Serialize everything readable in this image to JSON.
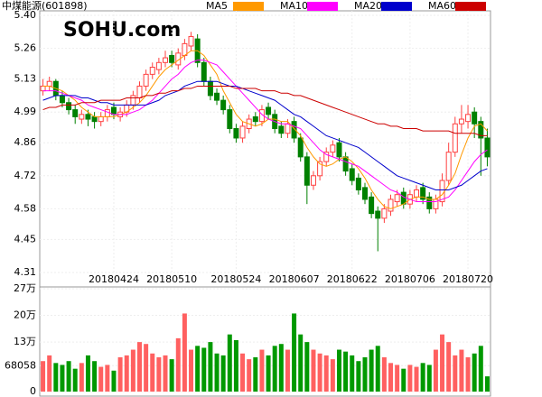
{
  "chart_data": [
    {
      "type": "candlestick",
      "title": "中煤能源(601898)",
      "watermark": "SOHU.com",
      "categories": [
        null,
        null,
        null,
        null,
        null,
        null,
        null,
        null,
        null,
        null,
        null,
        "20180424",
        null,
        null,
        null,
        null,
        null,
        null,
        null,
        null,
        "20180510",
        null,
        null,
        null,
        null,
        null,
        null,
        null,
        null,
        null,
        "20180524",
        null,
        null,
        null,
        null,
        null,
        null,
        null,
        null,
        "20180607",
        null,
        null,
        null,
        null,
        null,
        null,
        null,
        null,
        "20180622",
        null,
        null,
        null,
        null,
        null,
        null,
        null,
        null,
        "20180706",
        null,
        null,
        null,
        null,
        null,
        null,
        null,
        null,
        "20180720",
        null,
        null,
        null
      ],
      "open": [
        5.08,
        5.1,
        5.12,
        5.06,
        5.03,
        5.0,
        4.96,
        4.98,
        4.97,
        4.95,
        4.97,
        5.01,
        4.97,
        4.99,
        5.02,
        5.05,
        5.1,
        5.15,
        5.17,
        5.2,
        5.23,
        5.19,
        5.23,
        5.27,
        5.3,
        5.2,
        5.12,
        5.07,
        5.04,
        5.0,
        4.92,
        4.88,
        4.92,
        4.97,
        4.95,
        5.01,
        4.98,
        4.93,
        4.9,
        4.95,
        4.88,
        4.8,
        4.68,
        4.72,
        4.78,
        4.82,
        4.86,
        4.8,
        4.75,
        4.71,
        4.67,
        4.63,
        4.57,
        4.54,
        4.57,
        4.61,
        4.65,
        4.6,
        4.63,
        4.67,
        4.63,
        4.58,
        4.61,
        4.7,
        4.82,
        4.94,
        4.95,
        4.99,
        4.95,
        4.88
      ],
      "high": [
        5.13,
        5.14,
        5.13,
        5.08,
        5.05,
        5.02,
        5.0,
        5.0,
        4.99,
        4.99,
        5.02,
        5.03,
        5.01,
        5.04,
        5.08,
        5.12,
        5.17,
        5.2,
        5.22,
        5.25,
        5.25,
        5.26,
        5.3,
        5.33,
        5.32,
        5.22,
        5.14,
        5.09,
        5.06,
        5.02,
        4.94,
        4.95,
        4.98,
        4.99,
        5.02,
        5.03,
        5.0,
        4.95,
        4.96,
        4.97,
        4.9,
        4.82,
        4.74,
        4.8,
        4.84,
        4.87,
        4.88,
        4.82,
        4.77,
        4.73,
        4.69,
        4.65,
        4.59,
        4.6,
        4.64,
        4.66,
        4.67,
        4.66,
        4.68,
        4.69,
        4.65,
        4.64,
        4.73,
        4.86,
        4.97,
        5.02,
        5.02,
        5.01,
        4.97,
        4.92
      ],
      "low": [
        5.06,
        5.08,
        5.04,
        5.01,
        4.98,
        4.94,
        4.94,
        4.93,
        4.92,
        4.93,
        4.95,
        4.96,
        4.95,
        4.97,
        5.0,
        5.03,
        5.08,
        5.13,
        5.15,
        5.18,
        5.18,
        5.17,
        5.21,
        5.25,
        5.18,
        5.1,
        5.04,
        5.02,
        4.98,
        4.9,
        4.86,
        4.86,
        4.9,
        4.93,
        4.93,
        4.96,
        4.9,
        4.88,
        4.88,
        4.86,
        4.78,
        4.6,
        4.66,
        4.7,
        4.76,
        4.8,
        4.78,
        4.72,
        4.68,
        4.64,
        4.6,
        4.54,
        4.4,
        4.52,
        4.55,
        4.59,
        4.58,
        4.58,
        4.61,
        4.6,
        4.56,
        4.56,
        4.59,
        4.68,
        4.8,
        4.9,
        4.92,
        4.88,
        4.72,
        4.76
      ],
      "close": [
        5.1,
        5.12,
        5.06,
        5.03,
        5.0,
        4.97,
        4.98,
        4.96,
        4.95,
        4.97,
        5.0,
        4.98,
        4.99,
        5.02,
        5.06,
        5.1,
        5.15,
        5.18,
        5.2,
        5.22,
        5.2,
        5.24,
        5.28,
        5.31,
        5.2,
        5.12,
        5.06,
        5.04,
        5.0,
        4.92,
        4.88,
        4.93,
        4.96,
        4.95,
        5.0,
        4.98,
        4.92,
        4.9,
        4.94,
        4.88,
        4.8,
        4.68,
        4.72,
        4.78,
        4.82,
        4.85,
        4.8,
        4.74,
        4.7,
        4.66,
        4.62,
        4.56,
        4.54,
        4.58,
        4.62,
        4.64,
        4.6,
        4.64,
        4.66,
        4.62,
        4.58,
        4.62,
        4.7,
        4.82,
        4.94,
        4.96,
        4.98,
        4.94,
        4.88,
        4.8
      ],
      "up_color": "#ff4040",
      "down_color": "#008000",
      "ylim": [
        4.31,
        5.4
      ],
      "yticks": [
        {
          "value": 5.4,
          "label": "5.40"
        },
        5.26,
        5.13,
        4.99,
        4.86,
        4.72,
        4.58,
        4.45,
        4.31
      ],
      "grid": true,
      "legend": "top",
      "series": [
        {
          "name": "MA5",
          "color": "#ff9900",
          "values": [
            5.1,
            5.1,
            5.09,
            5.08,
            5.06,
            5.04,
            5.01,
            4.99,
            4.97,
            4.97,
            4.97,
            4.97,
            4.98,
            4.99,
            5.01,
            5.03,
            5.06,
            5.1,
            5.14,
            5.17,
            5.19,
            5.21,
            5.23,
            5.25,
            5.25,
            5.23,
            5.19,
            5.15,
            5.08,
            5.03,
            4.98,
            4.95,
            4.94,
            4.93,
            4.94,
            4.96,
            4.96,
            4.95,
            4.95,
            4.92,
            4.89,
            4.84,
            4.8,
            4.77,
            4.76,
            4.77,
            4.79,
            4.8,
            4.78,
            4.75,
            4.71,
            4.66,
            4.62,
            4.59,
            4.58,
            4.59,
            4.6,
            4.62,
            4.63,
            4.63,
            4.62,
            4.62,
            4.64,
            4.68,
            4.73,
            4.81,
            4.88,
            4.93,
            4.94,
            4.91
          ]
        },
        {
          "name": "MA10",
          "color": "#ff00ff",
          "values": [
            5.08,
            5.08,
            5.08,
            5.07,
            5.06,
            5.05,
            5.04,
            5.02,
            5.01,
            5.0,
            4.99,
            4.98,
            4.98,
            4.98,
            4.99,
            5.0,
            5.02,
            5.04,
            5.07,
            5.1,
            5.13,
            5.15,
            5.18,
            5.2,
            5.21,
            5.21,
            5.2,
            5.19,
            5.16,
            5.13,
            5.1,
            5.07,
            5.04,
            5.01,
            4.98,
            4.96,
            4.95,
            4.94,
            4.94,
            4.93,
            4.92,
            4.89,
            4.86,
            4.83,
            4.81,
            4.8,
            4.79,
            4.78,
            4.77,
            4.76,
            4.74,
            4.72,
            4.7,
            4.68,
            4.66,
            4.65,
            4.63,
            4.62,
            4.61,
            4.61,
            4.61,
            4.61,
            4.62,
            4.63,
            4.66,
            4.7,
            4.74,
            4.78,
            4.81,
            4.83
          ]
        },
        {
          "name": "MA20",
          "color": "#0000cc",
          "values": [
            5.04,
            5.05,
            5.06,
            5.06,
            5.06,
            5.06,
            5.05,
            5.05,
            5.04,
            5.03,
            5.03,
            5.02,
            5.02,
            5.02,
            5.02,
            5.02,
            5.02,
            5.03,
            5.04,
            5.06,
            5.07,
            5.08,
            5.1,
            5.11,
            5.12,
            5.12,
            5.12,
            5.12,
            5.11,
            5.1,
            5.1,
            5.09,
            5.08,
            5.07,
            5.06,
            5.05,
            5.04,
            5.02,
            5.0,
            4.98,
            4.97,
            4.95,
            4.93,
            4.91,
            4.89,
            4.88,
            4.87,
            4.86,
            4.85,
            4.84,
            4.82,
            4.8,
            4.78,
            4.76,
            4.74,
            4.72,
            4.71,
            4.7,
            4.69,
            4.68,
            4.67,
            4.66,
            4.66,
            4.66,
            4.67,
            4.68,
            4.7,
            4.72,
            4.74,
            4.75
          ]
        },
        {
          "name": "MA60",
          "color": "#cc0000",
          "values": [
            5.0,
            5.01,
            5.01,
            5.02,
            5.02,
            5.02,
            5.03,
            5.03,
            5.03,
            5.04,
            5.04,
            5.04,
            5.04,
            5.05,
            5.05,
            5.05,
            5.06,
            5.06,
            5.07,
            5.07,
            5.08,
            5.08,
            5.09,
            5.09,
            5.1,
            5.1,
            5.1,
            5.1,
            5.1,
            5.1,
            5.09,
            5.09,
            5.09,
            5.09,
            5.08,
            5.08,
            5.08,
            5.07,
            5.07,
            5.06,
            5.06,
            5.05,
            5.04,
            5.03,
            5.02,
            5.01,
            5.0,
            4.99,
            4.98,
            4.97,
            4.96,
            4.95,
            4.94,
            4.94,
            4.93,
            4.93,
            4.92,
            4.92,
            4.92,
            4.91,
            4.91,
            4.91,
            4.91,
            4.91,
            4.9,
            4.9,
            4.9,
            4.9,
            4.89,
            4.89
          ]
        }
      ]
    },
    {
      "type": "bar",
      "up_color": "#ff6060",
      "down_color": "#009900",
      "values": [
        80000,
        95000,
        75000,
        70000,
        80000,
        60000,
        75000,
        95000,
        80000,
        65000,
        70000,
        55000,
        90000,
        95000,
        110000,
        130000,
        125000,
        100000,
        90000,
        95000,
        85000,
        140000,
        205000,
        110000,
        120000,
        115000,
        130000,
        100000,
        95000,
        150000,
        135000,
        100000,
        85000,
        90000,
        110000,
        95000,
        120000,
        125000,
        110000,
        205000,
        150000,
        130000,
        110000,
        100000,
        95000,
        85000,
        110000,
        105000,
        95000,
        80000,
        90000,
        110000,
        120000,
        90000,
        75000,
        70000,
        60000,
        70000,
        65000,
        75000,
        70000,
        110000,
        150000,
        130000,
        95000,
        110000,
        90000,
        100000,
        120000,
        40000
      ],
      "ylim": [
        0,
        270000
      ],
      "yticks": [
        {
          "value": 270000,
          "label": "27万"
        },
        {
          "value": 200000,
          "label": "20万"
        },
        {
          "value": 130000,
          "label": "13万"
        },
        68058,
        0
      ]
    }
  ]
}
